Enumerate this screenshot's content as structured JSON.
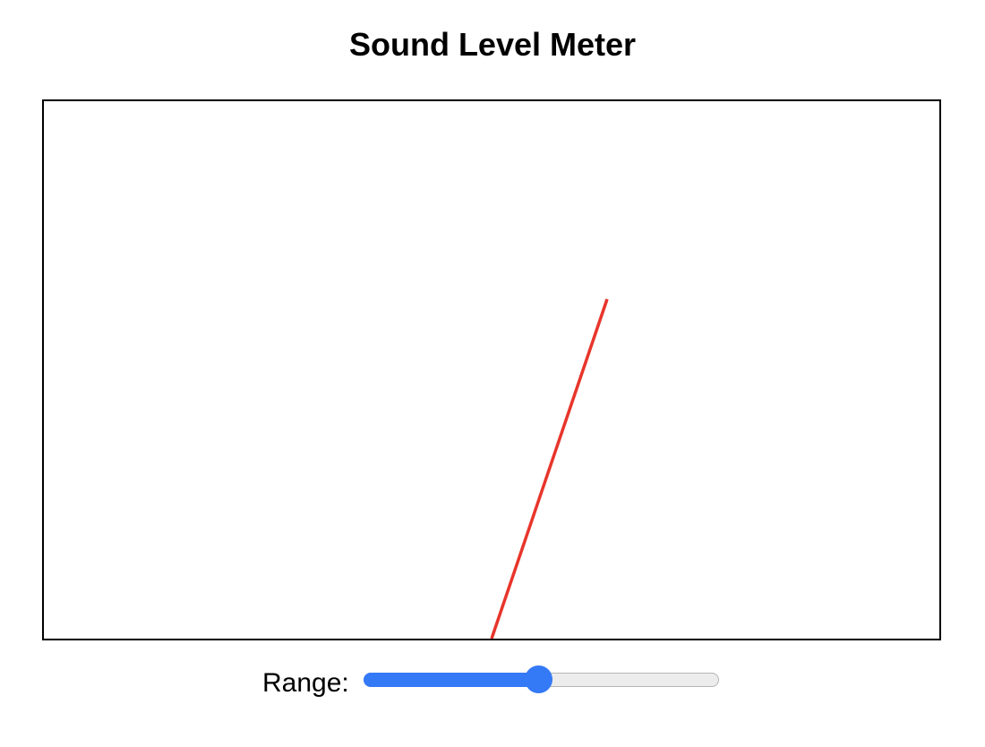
{
  "page": {
    "title": "Sound Level Meter"
  },
  "meter": {
    "needle_color": "#e8352b",
    "frame_color": "#000000"
  },
  "range_control": {
    "label": "Range:",
    "value_fraction": 0.49,
    "accent_color": "#3479f6"
  }
}
